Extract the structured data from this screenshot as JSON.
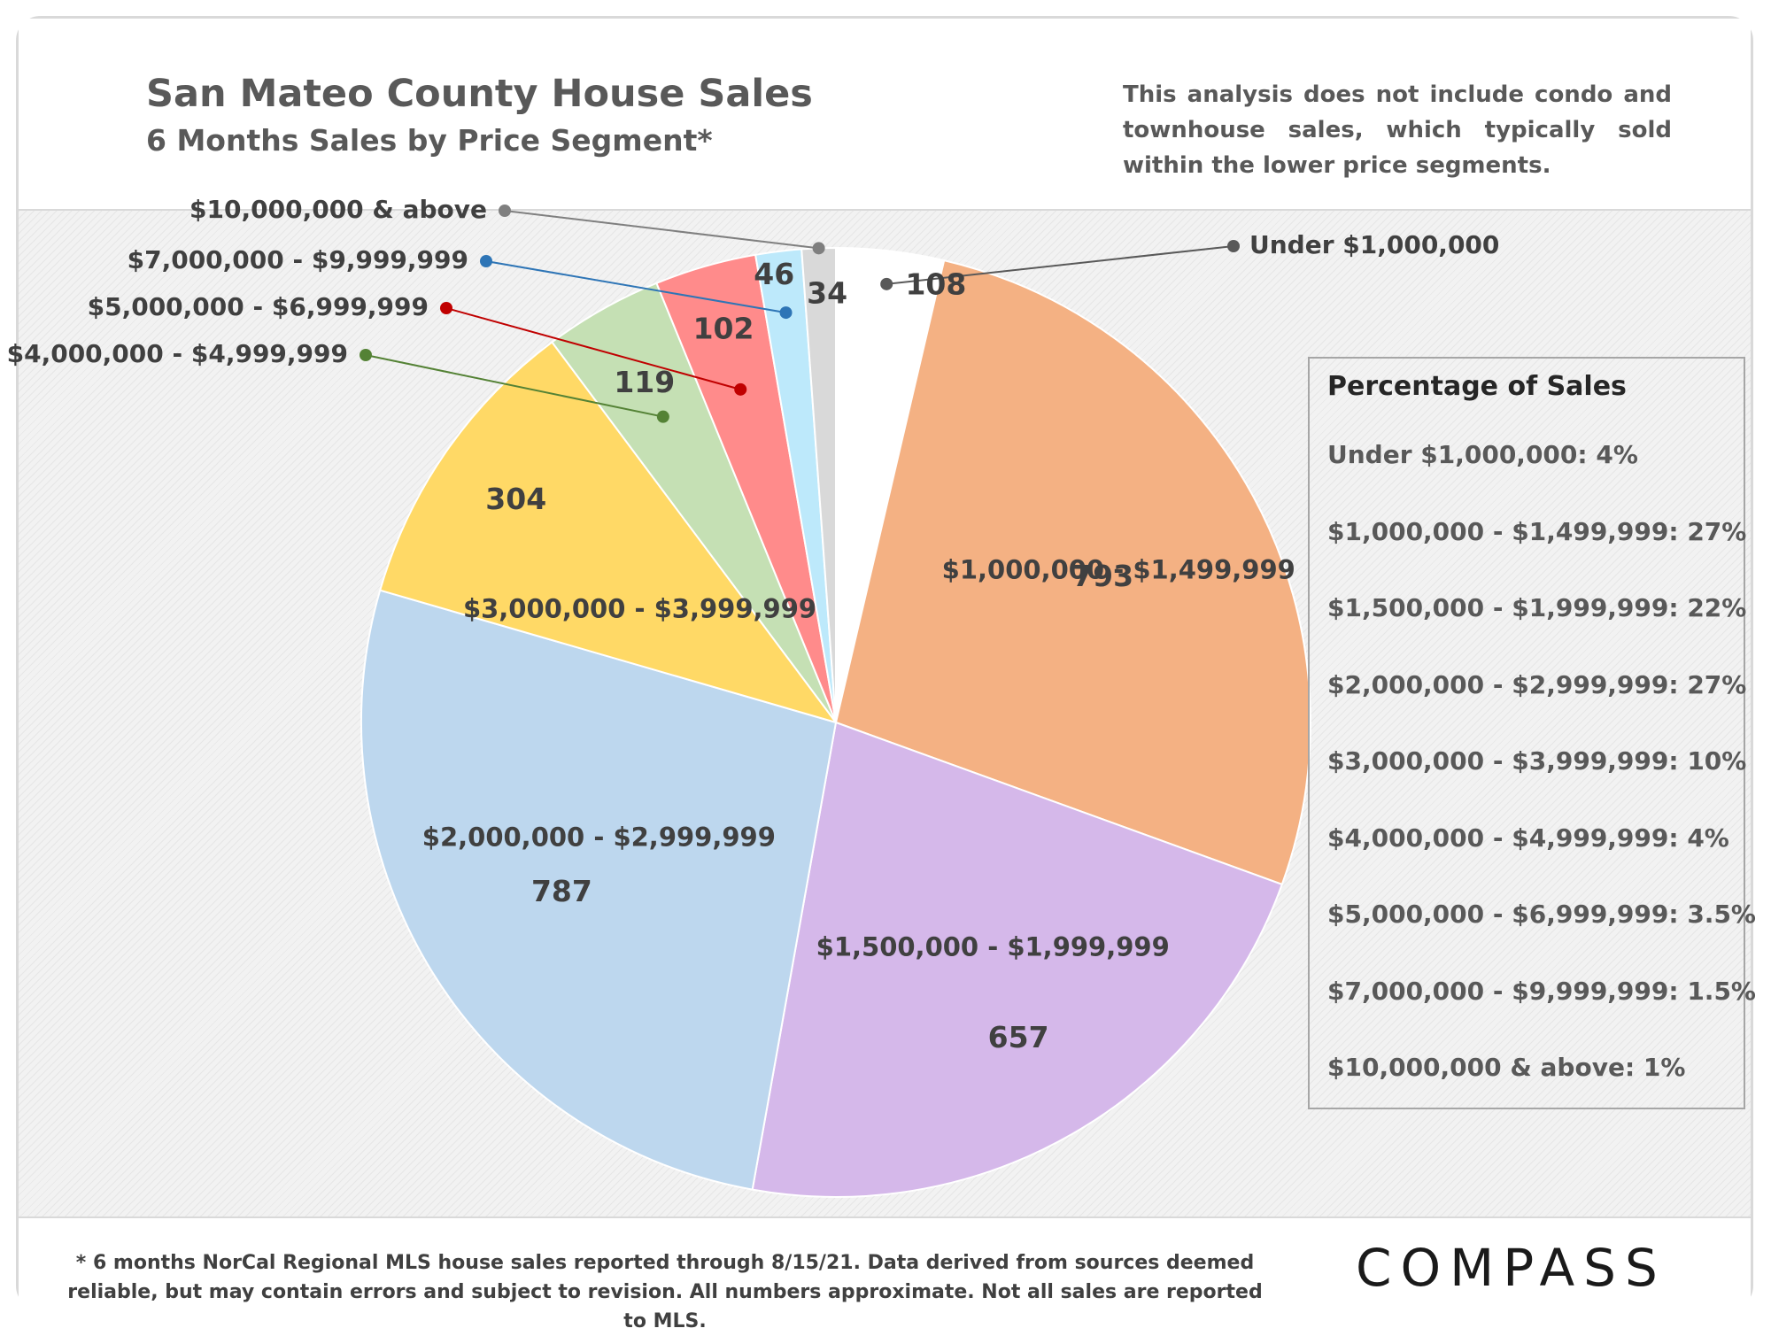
{
  "header": {
    "title": "San Mateo County House Sales",
    "subtitle": "6 Months Sales by Price Segment*",
    "note": "This analysis does not include condo and townhouse sales, which typically sold within the lower price segments."
  },
  "legend": {
    "title": "Percentage of Sales",
    "items": [
      "Under $1,000,000: 4%",
      "$1,000,000 - $1,499,999: 27%",
      "$1,500,000 - $1,999,999: 22%",
      "$2,000,000 - $2,999,999: 27%",
      "$3,000,000 - $3,999,999: 10%",
      "$4,000,000 - $4,999,999: 4%",
      "$5,000,000 - $6,999,999: 3.5%",
      "$7,000,000 - $9,999,999:  1.5%",
      "$10,000,000 & above: 1%"
    ]
  },
  "chart_data": {
    "type": "pie",
    "title": "San Mateo County House Sales",
    "subtitle": "6 Months Sales by Price Segment*",
    "slices": [
      {
        "label": "Under $1,000,000",
        "value": 108,
        "color": "#ffffff"
      },
      {
        "label": "$1,000,000 - $1,499,999",
        "value": 793,
        "color": "#f4b183"
      },
      {
        "label": "$1,500,000 - $1,999,999",
        "value": 657,
        "color": "#d5b8ea"
      },
      {
        "label": "$2,000,000 - $2,999,999",
        "value": 787,
        "color": "#bdd7ee"
      },
      {
        "label": "$3,000,000 - $3,999,999",
        "value": 304,
        "color": "#ffd966"
      },
      {
        "label": "$4,000,000 - $4,999,999",
        "value": 119,
        "color": "#c5e0b4"
      },
      {
        "label": "$5,000,000 - $6,999,999",
        "value": 102,
        "color": "#ff8b8b"
      },
      {
        "label": "$7,000,000 - $9,999,999",
        "value": 46,
        "color": "#bde9fb"
      },
      {
        "label": "$10,000,000 & above",
        "value": 34,
        "color": "#d9d9d9"
      }
    ],
    "leader_colors": {
      "Under $1,000,000": "#595959",
      "$4,000,000 - $4,999,999": "#548235",
      "$5,000,000 - $6,999,999": "#c00000",
      "$7,000,000 - $9,999,999": "#2e75b6",
      "$10,000,000 & above": "#7f7f7f"
    }
  },
  "footer": {
    "footnote": "* 6 months NorCal Regional MLS house sales reported through 8/15/21. Data derived from sources deemed reliable, but may contain errors and subject to revision. All numbers approximate. Not all sales are reported to MLS.",
    "logo": "COMPASS"
  }
}
